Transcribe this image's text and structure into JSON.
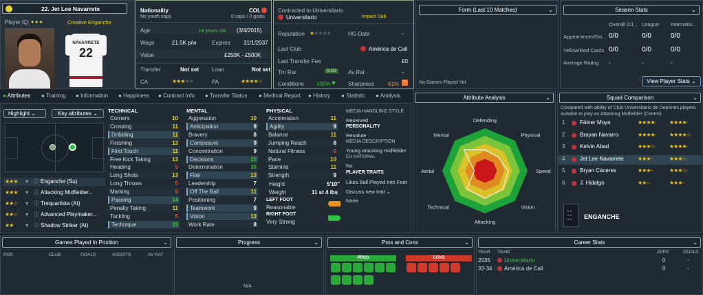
{
  "player": {
    "number_name": "22. Jet Lee Navarrete",
    "iq_label": "Player IQ:",
    "role_tag": "Creative Enganche",
    "shirt_name": "NAVARRETE",
    "shirt_number": "22"
  },
  "info": {
    "nationality_label": "Nationality",
    "nationality_val": "COL",
    "youth_caps": "No youth caps",
    "caps": "0 caps / 0 goals",
    "age_label": "Age",
    "age_val": "19 years old",
    "dob": "(3/4/2015)",
    "wage_label": "Wage",
    "wage_val": "£1.5K p/w",
    "expires_label": "Expires",
    "expires_val": "31/1/2037",
    "value_label": "Value",
    "value_val": "£250K - £500K",
    "transfer_label": "Transfer",
    "transfer_val": "Not set",
    "loan_label": "Loan",
    "loan_val": "Not set",
    "ca_label": "CA",
    "pa_label": "PA"
  },
  "contract": {
    "title": "Contracted to Universitario",
    "club": "Universitario",
    "role": "Impact Sub",
    "reputation_label": "Reputation",
    "hg_label": "HG-Date",
    "hg_val": "-",
    "last_club_label": "Last Club",
    "last_club_val": "América de Cali",
    "last_fee_label": "Last Transfer Fee",
    "last_fee_val": "£0",
    "trn_label": "Trn Rat",
    "trn_val": "0.00",
    "av_label": "Av Rat",
    "av_val": "-",
    "cond_label": "Conditions",
    "cond_val": "100%",
    "sharp_label": "Sharpness",
    "sharp_val": "61%"
  },
  "form": {
    "title": "Form (Last 10 Matches)",
    "empty": "No Games Played Yet"
  },
  "season": {
    "title": "Season Stats",
    "cols": [
      "Overall (Cl...",
      "League",
      "Internatio..."
    ],
    "rows": [
      {
        "label": "Appearances/Go...",
        "vals": [
          "0/0",
          "0/0",
          "0/0"
        ]
      },
      {
        "label": "Yellow/Red Cards",
        "vals": [
          "0/0",
          "0/0",
          "0/0"
        ]
      },
      {
        "label": "Average Rating",
        "vals": [
          "-",
          "-",
          "-"
        ]
      }
    ],
    "button": "View Player Stats"
  },
  "tabs": [
    "Attributes",
    "Training",
    "Information",
    "Happiness",
    "Contract Info",
    "Transfer Status",
    "Medical Report",
    "History",
    "Statistic",
    "Analysis"
  ],
  "left": {
    "highlight": "Highlight",
    "key_attr": "Key attributes",
    "roles": [
      {
        "name": "Enganche (Su)",
        "stars": 3
      },
      {
        "name": "Attacking Midfielder...",
        "stars": 3
      },
      {
        "name": "Trequartista (At)",
        "stars": 2
      },
      {
        "name": "Advanced Playmaker...",
        "stars": 2
      },
      {
        "name": "Shadow Striker (At)",
        "stars": 2
      }
    ]
  },
  "technical": {
    "title": "TECHNICAL",
    "items": [
      [
        "Corners",
        "10"
      ],
      [
        "Crossing",
        "11"
      ],
      [
        "Dribbling",
        "11"
      ],
      [
        "Finishing",
        "13"
      ],
      [
        "First Touch",
        "11"
      ],
      [
        "Free Kick Taking",
        "13"
      ],
      [
        "Heading",
        "5"
      ],
      [
        "Long Shots",
        "13"
      ],
      [
        "Long Throws",
        "5"
      ],
      [
        "Marking",
        "5"
      ],
      [
        "Passing",
        "14"
      ],
      [
        "Penalty Taking",
        "11"
      ],
      [
        "Tackling",
        "5"
      ],
      [
        "Technique",
        "15"
      ]
    ]
  },
  "mental": {
    "title": "MENTAL",
    "items": [
      [
        "Aggression",
        "10"
      ],
      [
        "Anticipation",
        "9"
      ],
      [
        "Bravery",
        "8"
      ],
      [
        "Composure",
        "9"
      ],
      [
        "Concentration",
        "9"
      ],
      [
        "Decisions",
        "15"
      ],
      [
        "Determination",
        "15"
      ],
      [
        "Flair",
        "13"
      ],
      [
        "Leadership",
        "7"
      ],
      [
        "Off The Ball",
        "11"
      ],
      [
        "Positioning",
        "7"
      ],
      [
        "Teamwork",
        "9"
      ],
      [
        "Vision",
        "13"
      ],
      [
        "Work Rate",
        "8"
      ]
    ]
  },
  "physical": {
    "title": "PHYSICAL",
    "items": [
      [
        "Acceleration",
        "11"
      ],
      [
        "Agility",
        "9"
      ],
      [
        "Balance",
        "11"
      ],
      [
        "Jumping Reach",
        "8"
      ],
      [
        "Natural Fitness",
        "6"
      ],
      [
        "Pace",
        "10"
      ],
      [
        "Stamina",
        "11"
      ],
      [
        "Strength",
        "9"
      ]
    ],
    "height_label": "Height",
    "height_val": "5'10\"",
    "weight_label": "Weight",
    "weight_val": "11 st 4 lbs",
    "left_foot_label": "LEFT FOOT",
    "left_foot_val": "Reasonable",
    "right_foot_label": "RIGHT FOOT",
    "right_foot_val": "Very Strong"
  },
  "media": {
    "title": "MEDIA HANDLING STYLE",
    "style": "Reserved",
    "personality_label": "PERSONALITY",
    "personality": "Resolute",
    "desc_label": "MEDIA DESCRIPTION",
    "desc": "Young attacking midfielder",
    "eu_label": "EU NATIONAL",
    "eu": "No",
    "traits_label": "PLAYER TRAITS",
    "trait1": "Likes Ball Played Into Feet",
    "trait2": "Discuss new trait",
    "trait3": "None"
  },
  "analysis": {
    "title": "Attribute Analysis",
    "axes": [
      "Defending",
      "Physical",
      "Speed",
      "Vision",
      "Attacking",
      "Technical",
      "Aerial",
      "Mental"
    ],
    "values": [
      0.5,
      0.45,
      0.55,
      0.6,
      0.65,
      0.6,
      0.25,
      0.7
    ]
  },
  "squad": {
    "title": "Squad Comparison",
    "subtitle": "Compared with ability of Club Universitario de Deportes players suitable to play as Attacking Midfielder (Centre)",
    "players": [
      {
        "rank": "1",
        "name": "Fáiner Moya",
        "s1": 4,
        "s2": 4
      },
      {
        "rank": "2",
        "name": "Brayan Navarro",
        "s1": 4,
        "s2": 4.5
      },
      {
        "rank": "3",
        "name": "Kelvin Abad",
        "s1": 3.5,
        "s2": 4
      },
      {
        "rank": "4",
        "name": "Jet Lee Navarrete",
        "s1": 3,
        "s2": 3.5
      },
      {
        "rank": "5",
        "name": "Bryan Cáceres",
        "s1": 3,
        "s2": 3.5
      },
      {
        "rank": "6",
        "name": "J. Hidalgo",
        "s1": 2,
        "s2": 3
      }
    ],
    "position": "ENGANCHE"
  },
  "games": {
    "title": "Games Played In Position",
    "cols": [
      "POS",
      "CLUB",
      "GOALS",
      "ASSISTS",
      "AV RAT"
    ]
  },
  "progress": {
    "title": "Progress",
    "empty": "N/A"
  },
  "proscons": {
    "title": "Pros and Cons",
    "pros": "PROS",
    "cons": "CONS"
  },
  "career": {
    "title": "Career Stats",
    "cols": [
      "YEAR",
      "TEAM",
      "APPS",
      "GOALS"
    ],
    "rows": [
      {
        "year": "2035",
        "team": "Universitario",
        "apps": "0",
        "goals": "-"
      },
      {
        "year": "32-34",
        "team": "América de Cali",
        "apps": "0",
        "goals": "-"
      }
    ]
  },
  "colors": {
    "good": "#3fc83f",
    "accent": "#e8d430",
    "bad": "#e0503a"
  }
}
